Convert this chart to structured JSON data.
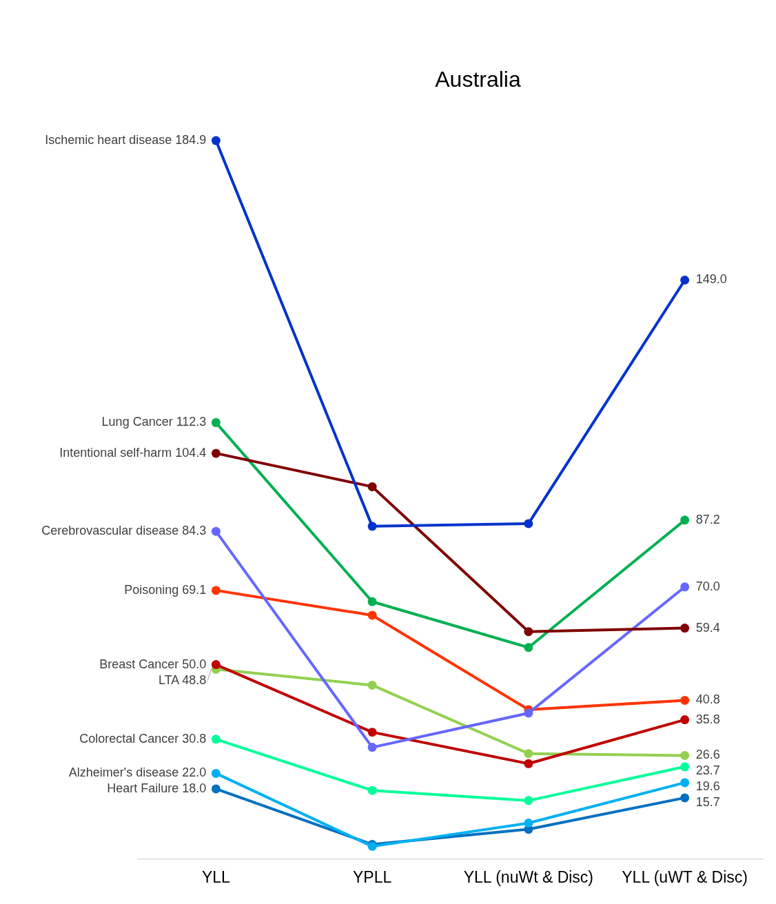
{
  "chart_data": {
    "type": "line",
    "title": "Australia",
    "categories": [
      "YLL",
      "YPLL",
      "YLL (nuWt & Disc)",
      "YLL (uWT & Disc)"
    ],
    "tick_labels": "x",
    "grid": false,
    "legend": false,
    "marker": "circle",
    "line_style": "solid",
    "series": [
      {
        "name": "Ischemic heart disease",
        "color": "#0033cc",
        "values": [
          184.9,
          85.6,
          86.3,
          149.0
        ],
        "value_labels": [
          "184.9",
          null,
          null,
          "149.0"
        ]
      },
      {
        "name": "Intentional self-harm",
        "color": "#7f0000",
        "values": [
          104.4,
          95.8,
          58.5,
          59.4
        ],
        "value_labels": [
          "104.4",
          null,
          null,
          "59.4"
        ]
      },
      {
        "name": "Lung Cancer",
        "color": "#00b050",
        "values": [
          112.3,
          66.2,
          54.4,
          87.2
        ],
        "value_labels": [
          "112.3",
          null,
          null,
          "87.2"
        ]
      },
      {
        "name": "Cerebrovascular disease",
        "color": "#6666ff",
        "values": [
          84.3,
          28.7,
          37.5,
          70.0
        ],
        "value_labels": [
          "84.3",
          null,
          null,
          "70.0"
        ]
      },
      {
        "name": "Poisoning",
        "color": "#ff3300",
        "values": [
          69.1,
          62.7,
          38.4,
          40.8
        ],
        "value_labels": [
          "69.1",
          null,
          null,
          "40.8"
        ]
      },
      {
        "name": "Breast Cancer",
        "color": "#c00000",
        "values": [
          50.0,
          32.6,
          24.5,
          35.8
        ],
        "value_labels": [
          "50.0",
          null,
          null,
          "35.8"
        ]
      },
      {
        "name": "LTA",
        "color": "#92d050",
        "values": [
          48.8,
          44.7,
          27.1,
          26.6
        ],
        "value_labels": [
          "48.8",
          null,
          null,
          "26.6"
        ]
      },
      {
        "name": "Colorectal Cancer",
        "color": "#00ff99",
        "values": [
          30.8,
          17.6,
          15.0,
          23.7
        ],
        "value_labels": [
          "30.8",
          null,
          null,
          "23.7"
        ]
      },
      {
        "name": "Alzheimer's disease",
        "color": "#00b0f0",
        "values": [
          22.0,
          3.2,
          9.2,
          19.6
        ],
        "value_labels": [
          "22.0",
          null,
          null,
          "19.6"
        ]
      },
      {
        "name": "Heart Failure",
        "color": "#0070c0",
        "values": [
          18.0,
          3.7,
          7.6,
          15.7
        ],
        "value_labels": [
          "18.0",
          null,
          null,
          "15.7"
        ]
      }
    ]
  }
}
